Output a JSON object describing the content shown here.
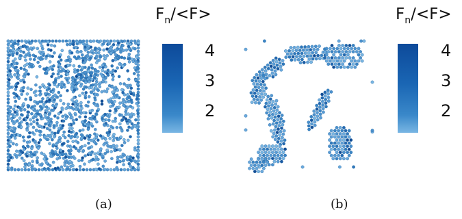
{
  "figure": {
    "colorbar_title_main": "F",
    "colorbar_title_sub": "n",
    "colorbar_title_rest": "/<F>",
    "colorbar_ticks": [
      "4",
      "3",
      "2"
    ],
    "colors": {
      "dark": "#0d4a9a",
      "mid": "#2f7fc4",
      "light": "#7ab6e2"
    },
    "panels": [
      {
        "id": "a",
        "caption": "(a)",
        "description": "dense random packing of particles colored by force"
      },
      {
        "id": "b",
        "caption": "(b)",
        "description": "clustered particles forming clumps and voids"
      }
    ]
  }
}
